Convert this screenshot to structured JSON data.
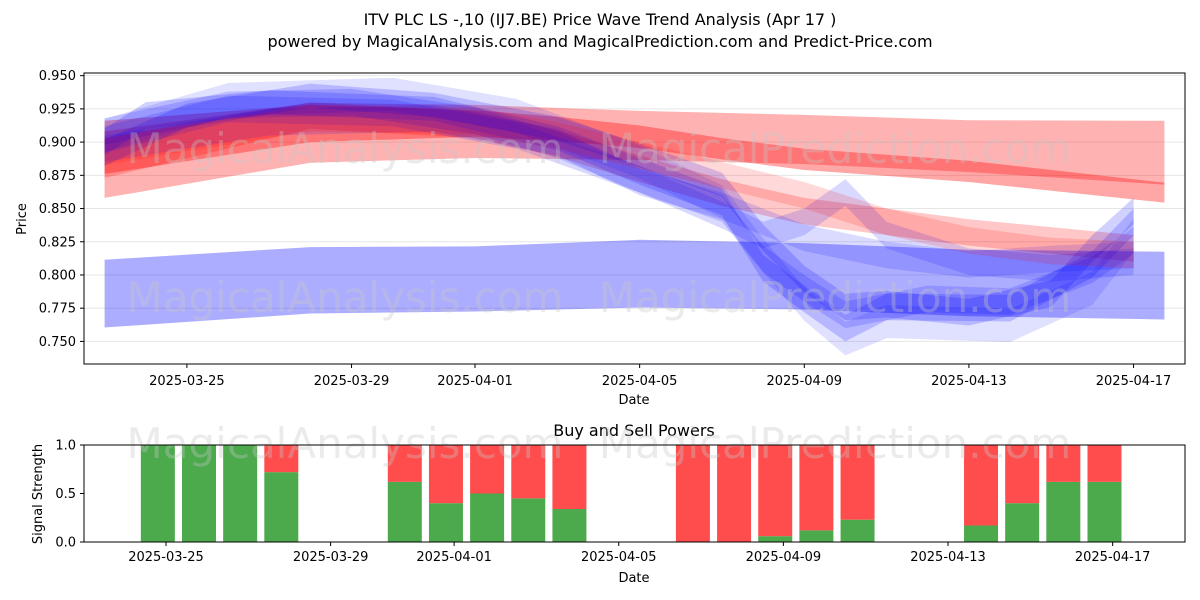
{
  "figure": {
    "title_line1": "ITV PLC  LS -,10 (IJ7.BE) Price Wave Trend Analysis (Apr 17 )",
    "title_line2": "powered by MagicalAnalysis.com and MagicalPrediction.com and Predict-Price.com",
    "watermarks": [
      "MagicalAnalysis.com",
      "MagicalPrediction.com"
    ]
  },
  "chart_data": [
    {
      "type": "area",
      "xlabel": "Date",
      "ylabel": "Price",
      "xlim": [
        "2025-03-22T12:00",
        "2025-04-18T06:00"
      ],
      "ylim": [
        0.733,
        0.952
      ],
      "yticks": [
        0.75,
        0.775,
        0.8,
        0.825,
        0.85,
        0.875,
        0.9,
        0.925,
        0.95
      ],
      "ytick_labels": [
        "0.750",
        "0.775",
        "0.800",
        "0.825",
        "0.850",
        "0.875",
        "0.900",
        "0.925",
        "0.950"
      ],
      "xticks": [
        "2025-03-25",
        "2025-03-29",
        "2025-04-01",
        "2025-04-05",
        "2025-04-09",
        "2025-04-13",
        "2025-04-17"
      ],
      "grid": "y",
      "colors": {
        "buy": "#0000ff",
        "sell": "#ff0000"
      },
      "series": [
        {
          "color": "#ff0000",
          "alpha": 0.3,
          "points": [
            [
              "2025-03-23",
              0.883
            ],
            [
              "2025-03-28",
              0.907
            ],
            [
              "2025-04-01",
              0.908
            ],
            [
              "2025-04-05",
              0.905
            ],
            [
              "2025-04-09",
              0.902
            ],
            [
              "2025-04-13",
              0.897
            ],
            [
              "2025-04-17T18:00",
              0.892
            ]
          ],
          "width": [
            0.05,
            0.045,
            0.04,
            0.037,
            0.037,
            0.039,
            0.048
          ]
        },
        {
          "color": "#ff0000",
          "alpha": 0.35,
          "points": [
            [
              "2025-03-23",
              0.896
            ],
            [
              "2025-03-28",
              0.914
            ],
            [
              "2025-04-01",
              0.914
            ],
            [
              "2025-04-03",
              0.91
            ],
            [
              "2025-04-05",
              0.904
            ],
            [
              "2025-04-07",
              0.895
            ],
            [
              "2025-04-09",
              0.887
            ],
            [
              "2025-04-13",
              0.878
            ],
            [
              "2025-04-17T18:00",
              0.862
            ]
          ],
          "width": [
            0.04,
            0.028,
            0.02,
            0.018,
            0.017,
            0.016,
            0.016,
            0.016,
            0.015
          ]
        },
        {
          "color": "#ff0000",
          "alpha": 0.22,
          "points": [
            [
              "2025-03-23",
              0.888
            ],
            [
              "2025-03-28",
              0.92
            ],
            [
              "2025-04-01",
              0.913
            ],
            [
              "2025-04-03",
              0.899
            ],
            [
              "2025-04-05",
              0.88
            ],
            [
              "2025-04-07",
              0.862
            ],
            [
              "2025-04-09",
              0.848
            ],
            [
              "2025-04-13",
              0.832
            ],
            [
              "2025-04-17",
              0.82
            ]
          ],
          "width": [
            0.03,
            0.02,
            0.02,
            0.02,
            0.02,
            0.02,
            0.02,
            0.02,
            0.02
          ]
        },
        {
          "color": "#0000ff",
          "alpha": 0.32,
          "points": [
            [
              "2025-03-23",
              0.786
            ],
            [
              "2025-03-28",
              0.796
            ],
            [
              "2025-04-01",
              0.797
            ],
            [
              "2025-04-05",
              0.801
            ],
            [
              "2025-04-09",
              0.799
            ],
            [
              "2025-04-13",
              0.794
            ],
            [
              "2025-04-17T18:00",
              0.792
            ]
          ],
          "width": [
            0.051,
            0.05,
            0.049,
            0.051,
            0.05,
            0.05,
            0.051
          ]
        },
        {
          "color": "#0000ff",
          "alpha": 0.18,
          "points": [
            [
              "2025-03-23",
              0.9
            ],
            [
              "2025-03-24",
              0.92
            ],
            [
              "2025-03-27",
              0.93
            ],
            [
              "2025-03-31",
              0.925
            ],
            [
              "2025-04-03",
              0.903
            ],
            [
              "2025-04-05",
              0.878
            ],
            [
              "2025-04-07",
              0.855
            ],
            [
              "2025-04-08",
              0.805
            ],
            [
              "2025-04-09",
              0.782
            ],
            [
              "2025-04-10",
              0.76
            ],
            [
              "2025-04-11",
              0.776
            ],
            [
              "2025-04-14",
              0.775
            ],
            [
              "2025-04-16",
              0.808
            ],
            [
              "2025-04-17",
              0.84
            ]
          ],
          "width": [
            0.02,
            0.02,
            0.018,
            0.018,
            0.018,
            0.02,
            0.02,
            0.02,
            0.02,
            0.02,
            0.02,
            0.02,
            0.02,
            0.02
          ]
        },
        {
          "color": "#0000ff",
          "alpha": 0.18,
          "points": [
            [
              "2025-03-23",
              0.892
            ],
            [
              "2025-03-25",
              0.92
            ],
            [
              "2025-03-28",
              0.935
            ],
            [
              "2025-03-31",
              0.928
            ],
            [
              "2025-04-03",
              0.91
            ],
            [
              "2025-04-05",
              0.89
            ],
            [
              "2025-04-07",
              0.868
            ],
            [
              "2025-04-08",
              0.828
            ],
            [
              "2025-04-09",
              0.797
            ],
            [
              "2025-04-10",
              0.776
            ],
            [
              "2025-04-11",
              0.778
            ],
            [
              "2025-04-13",
              0.772
            ],
            [
              "2025-04-15",
              0.786
            ],
            [
              "2025-04-16",
              0.82
            ],
            [
              "2025-04-17",
              0.848
            ]
          ],
          "width": [
            0.02,
            0.018,
            0.018,
            0.018,
            0.018,
            0.018,
            0.018,
            0.02,
            0.02,
            0.02,
            0.02,
            0.02,
            0.02,
            0.02,
            0.02
          ]
        },
        {
          "color": "#0000ff",
          "alpha": 0.16,
          "points": [
            [
              "2025-03-23",
              0.908
            ],
            [
              "2025-03-26",
              0.928
            ],
            [
              "2025-03-29",
              0.93
            ],
            [
              "2025-04-01",
              0.916
            ],
            [
              "2025-04-03",
              0.898
            ],
            [
              "2025-04-05",
              0.872
            ],
            [
              "2025-04-07",
              0.85
            ],
            [
              "2025-04-08",
              0.812
            ],
            [
              "2025-04-09",
              0.79
            ],
            [
              "2025-04-10",
              0.77
            ],
            [
              "2025-04-12",
              0.782
            ],
            [
              "2025-04-14",
              0.78
            ],
            [
              "2025-04-16",
              0.804
            ],
            [
              "2025-04-17",
              0.826
            ]
          ],
          "width": [
            0.02,
            0.02,
            0.02,
            0.02,
            0.02,
            0.02,
            0.02,
            0.02,
            0.02,
            0.02,
            0.02,
            0.02,
            0.02,
            0.02
          ]
        },
        {
          "color": "#0000ff",
          "alpha": 0.15,
          "points": [
            [
              "2025-03-23",
              0.902
            ],
            [
              "2025-03-26",
              0.925
            ],
            [
              "2025-03-30",
              0.922
            ],
            [
              "2025-04-02",
              0.905
            ],
            [
              "2025-04-05",
              0.872
            ],
            [
              "2025-04-07",
              0.845
            ],
            [
              "2025-04-08",
              0.83
            ],
            [
              "2025-04-09",
              0.84
            ],
            [
              "2025-04-10",
              0.862
            ],
            [
              "2025-04-11",
              0.83
            ],
            [
              "2025-04-13",
              0.81
            ],
            [
              "2025-04-15",
              0.805
            ],
            [
              "2025-04-17",
              0.81
            ]
          ],
          "width": [
            0.02,
            0.02,
            0.02,
            0.02,
            0.02,
            0.02,
            0.02,
            0.02,
            0.02,
            0.02,
            0.02,
            0.02,
            0.02
          ]
        },
        {
          "color": "#0000ff",
          "alpha": 0.14,
          "points": [
            [
              "2025-03-23",
              0.895
            ],
            [
              "2025-03-27",
              0.915
            ],
            [
              "2025-03-31",
              0.918
            ],
            [
              "2025-04-03",
              0.9
            ],
            [
              "2025-04-05",
              0.87
            ],
            [
              "2025-04-07",
              0.852
            ],
            [
              "2025-04-09",
              0.828
            ],
            [
              "2025-04-11",
              0.815
            ],
            [
              "2025-04-13",
              0.808
            ],
            [
              "2025-04-15",
              0.812
            ],
            [
              "2025-04-17",
              0.815
            ]
          ],
          "width": [
            0.02,
            0.02,
            0.02,
            0.02,
            0.02,
            0.02,
            0.02,
            0.02,
            0.02,
            0.02,
            0.02
          ]
        },
        {
          "color": "#0000ff",
          "alpha": 0.12,
          "points": [
            [
              "2025-03-23",
              0.905
            ],
            [
              "2025-03-26",
              0.932
            ],
            [
              "2025-03-30",
              0.936
            ],
            [
              "2025-04-02",
              0.92
            ],
            [
              "2025-04-05",
              0.885
            ],
            [
              "2025-04-07",
              0.855
            ],
            [
              "2025-04-08",
              0.815
            ],
            [
              "2025-04-09",
              0.778
            ],
            [
              "2025-04-10",
              0.752
            ],
            [
              "2025-04-11",
              0.765
            ],
            [
              "2025-04-14",
              0.762
            ],
            [
              "2025-04-16",
              0.79
            ],
            [
              "2025-04-17",
              0.83
            ]
          ],
          "width": [
            0.025,
            0.025,
            0.025,
            0.025,
            0.025,
            0.025,
            0.025,
            0.025,
            0.025,
            0.025,
            0.025,
            0.025,
            0.025
          ]
        },
        {
          "color": "#ff0000",
          "alpha": 0.15,
          "points": [
            [
              "2025-03-23",
              0.893
            ],
            [
              "2025-03-28",
              0.918
            ],
            [
              "2025-04-01",
              0.916
            ],
            [
              "2025-04-03",
              0.905
            ],
            [
              "2025-04-05",
              0.89
            ],
            [
              "2025-04-07",
              0.875
            ],
            [
              "2025-04-09",
              0.86
            ],
            [
              "2025-04-11",
              0.84
            ],
            [
              "2025-04-13",
              0.826
            ],
            [
              "2025-04-15",
              0.818
            ],
            [
              "2025-04-17",
              0.815
            ]
          ],
          "width": [
            0.02,
            0.02,
            0.02,
            0.02,
            0.02,
            0.02,
            0.02,
            0.02,
            0.02,
            0.02,
            0.02
          ]
        }
      ]
    },
    {
      "type": "bar",
      "title": "Buy and Sell Powers",
      "xlabel": "Date",
      "ylabel": "Signal Strength",
      "ylim": [
        0,
        1
      ],
      "yticks": [
        0,
        0.5,
        1
      ],
      "ytick_labels": [
        "0.0",
        "0.5",
        "1.0"
      ],
      "xticks": [
        "2025-03-25",
        "2025-03-29",
        "2025-04-01",
        "2025-04-05",
        "2025-04-09",
        "2025-04-13",
        "2025-04-17"
      ],
      "dates": [
        "2025-03-24",
        "2025-03-25",
        "2025-03-26",
        "2025-03-27",
        "2025-03-30",
        "2025-03-31",
        "2025-04-01",
        "2025-04-02",
        "2025-04-03",
        "2025-04-06",
        "2025-04-07",
        "2025-04-08",
        "2025-04-09",
        "2025-04-10",
        "2025-04-13",
        "2025-04-14",
        "2025-04-15",
        "2025-04-16"
      ],
      "series": [
        {
          "color": "#4caa4c",
          "values": [
            1.0,
            1.0,
            1.0,
            0.72,
            0.62,
            0.4,
            0.5,
            0.45,
            0.34,
            0.0,
            0.0,
            0.06,
            0.12,
            0.23,
            0.17,
            0.4,
            0.62,
            0.62
          ]
        },
        {
          "color": "#ff4c4c",
          "values": [
            0.0,
            0.0,
            0.0,
            0.28,
            0.38,
            0.6,
            0.5,
            0.55,
            0.66,
            1.0,
            1.0,
            0.94,
            0.88,
            0.77,
            0.83,
            0.6,
            0.38,
            0.38
          ]
        }
      ]
    }
  ]
}
